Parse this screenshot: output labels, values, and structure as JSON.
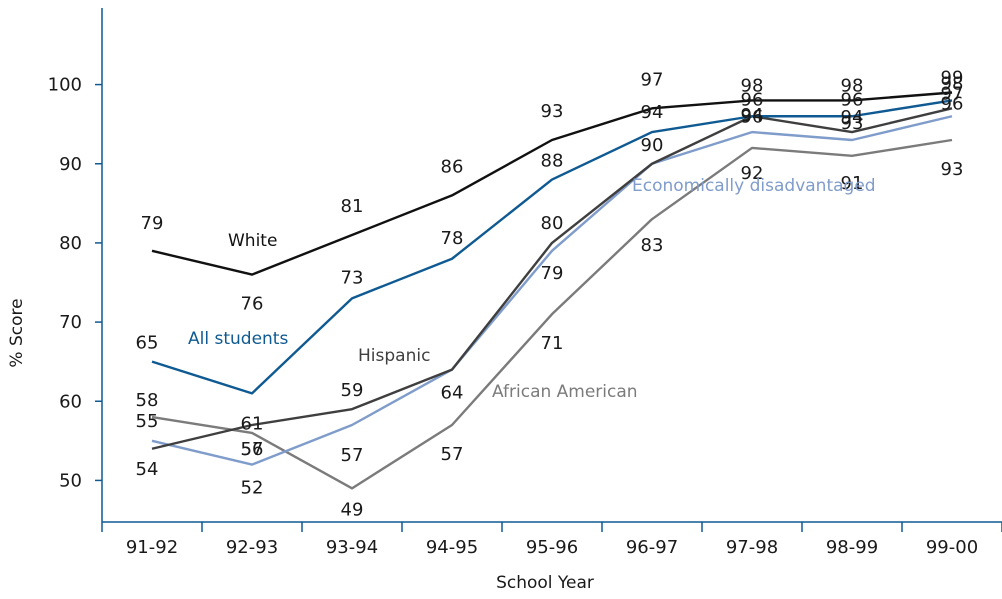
{
  "chart_data": {
    "type": "line",
    "title": "",
    "xlabel": "School Year",
    "ylabel": "% Score",
    "categories": [
      "91-92",
      "92-93",
      "93-94",
      "94-95",
      "95-96",
      "96-97",
      "97-98",
      "98-99",
      "99-00"
    ],
    "yticks": [
      "50",
      "60",
      "70",
      "80",
      "90",
      "100"
    ],
    "ylim": [
      45,
      105
    ],
    "grid": false,
    "legend": "inline labels",
    "series": [
      {
        "name": "White",
        "color": "#111111",
        "values": [
          79,
          76,
          81,
          86,
          93,
          97,
          98,
          98,
          99
        ],
        "labels": [
          "79",
          "76",
          "81",
          "86",
          "93",
          "97",
          "98",
          "98",
          "99"
        ]
      },
      {
        "name": "All students",
        "color": "#0f5a92",
        "values": [
          65,
          61,
          73,
          78,
          88,
          94,
          96,
          96,
          98
        ],
        "labels": [
          "65",
          "61",
          "73",
          "78",
          "88",
          "94",
          "96",
          "96",
          "98"
        ]
      },
      {
        "name": "Hispanic",
        "color": "#3f3f3f",
        "values": [
          54,
          57,
          59,
          64,
          80,
          90,
          96,
          94,
          97
        ],
        "labels": [
          "54",
          "57",
          "59",
          "64",
          "80",
          "90",
          "96",
          "94",
          "97"
        ]
      },
      {
        "name": "Economically disadvantaged",
        "color": "#7f9ccb",
        "values": [
          55,
          52,
          57,
          64,
          79,
          90,
          94,
          93,
          96
        ],
        "labels": [
          "55",
          "52",
          "57",
          "",
          "79",
          "",
          "94",
          "93",
          "96"
        ]
      },
      {
        "name": "African American",
        "color": "#7b7b7b",
        "values": [
          58,
          56,
          49,
          57,
          71,
          83,
          92,
          91,
          93
        ],
        "labels": [
          "58",
          "56",
          "49",
          "57",
          "71",
          "83",
          "92",
          "91",
          "93"
        ]
      }
    ]
  }
}
